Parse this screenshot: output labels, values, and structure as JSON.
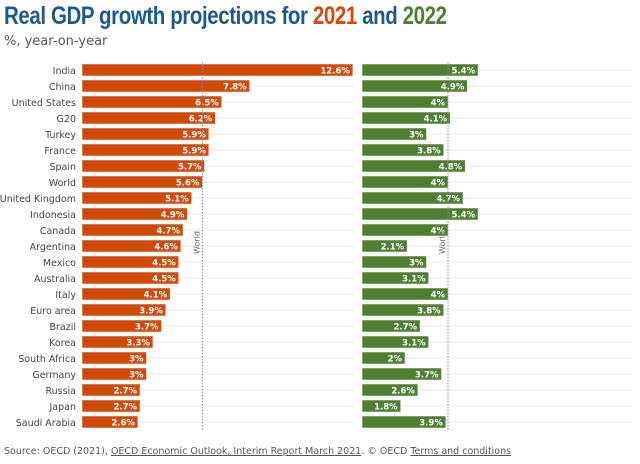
{
  "title": {
    "prefix": "Real GDP growth projections for ",
    "y1": "2021",
    "mid": " and ",
    "y2": "2022"
  },
  "subtitle": "%, year-on-year",
  "colors": {
    "title": "#1d5a8a",
    "s2021": "#d04a0a",
    "s2022": "#4f7f33",
    "grid": "#e6e6e6",
    "ref": "#888888"
  },
  "chart_data": {
    "type": "bar",
    "orientation": "horizontal",
    "categories": [
      "India",
      "China",
      "United States",
      "G20",
      "Turkey",
      "France",
      "Spain",
      "World",
      "United Kingdom",
      "Indonesia",
      "Canada",
      "Argentina",
      "Mexico",
      "Australia",
      "Italy",
      "Euro area",
      "Brazil",
      "Korea",
      "South Africa",
      "Germany",
      "Russia",
      "Japan",
      "Saudi Arabia"
    ],
    "series": [
      {
        "name": "2021",
        "values": [
          12.6,
          7.8,
          6.5,
          6.2,
          5.9,
          5.9,
          5.7,
          5.6,
          5.1,
          4.9,
          4.7,
          4.6,
          4.5,
          4.5,
          4.1,
          3.9,
          3.7,
          3.3,
          3,
          3,
          2.7,
          2.7,
          2.6
        ],
        "reference": {
          "label": "World",
          "value": 5.6
        }
      },
      {
        "name": "2022",
        "values": [
          5.4,
          4.9,
          4,
          4.1,
          3,
          3.8,
          4.8,
          4,
          4.7,
          5.4,
          4,
          2.1,
          3,
          3.1,
          4,
          3.8,
          2.7,
          3.1,
          2,
          3.7,
          2.6,
          1.8,
          3.9
        ],
        "reference": {
          "label": "World",
          "value": 4
        }
      }
    ],
    "value_suffix": "%",
    "grid": true
  },
  "source": {
    "prefix": "Source: OECD (2021), ",
    "link": "OECD Economic Outlook, Interim Report March 2021",
    "mid": ". © OECD ",
    "terms": "Terms and conditions"
  }
}
